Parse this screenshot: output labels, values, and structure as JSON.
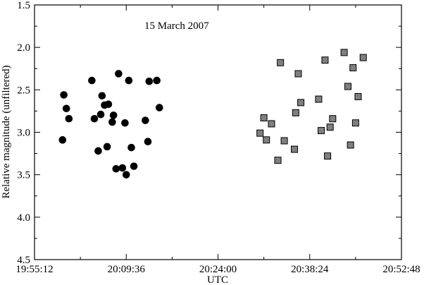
{
  "chart_data": {
    "type": "scatter",
    "annotation": "15 March 2007",
    "xlabel": "UTC",
    "ylabel": "Relative magnitude (unfiltered)",
    "x_tick_labels": [
      "19:55:12",
      "20:09:36",
      "20:24:00",
      "20:38:24",
      "20:52:48"
    ],
    "y_tick_labels": [
      "1.5",
      "2.0",
      "2.5",
      "3.0",
      "3.5",
      "4.0",
      "4.5"
    ],
    "xlim": [
      "19:55:12",
      "20:52:48"
    ],
    "ylim": [
      1.5,
      4.5
    ],
    "y_inverted": true,
    "grid": false,
    "series": [
      {
        "marker": "filled-circle",
        "color": "#000000",
        "points": [
          {
            "x": "19:59:36",
            "y": 3.09
          },
          {
            "x": "19:59:48",
            "y": 2.56
          },
          {
            "x": "20:00:12",
            "y": 2.72
          },
          {
            "x": "20:00:36",
            "y": 2.84
          },
          {
            "x": "20:04:12",
            "y": 2.39
          },
          {
            "x": "20:04:36",
            "y": 2.84
          },
          {
            "x": "20:05:12",
            "y": 3.22
          },
          {
            "x": "20:05:36",
            "y": 2.79
          },
          {
            "x": "20:05:48",
            "y": 2.57
          },
          {
            "x": "20:06:12",
            "y": 2.68
          },
          {
            "x": "20:06:36",
            "y": 3.17
          },
          {
            "x": "20:06:48",
            "y": 2.67
          },
          {
            "x": "20:07:24",
            "y": 2.88
          },
          {
            "x": "20:07:36",
            "y": 2.8
          },
          {
            "x": "20:08:00",
            "y": 3.43
          },
          {
            "x": "20:08:24",
            "y": 2.31
          },
          {
            "x": "20:09:00",
            "y": 3.42
          },
          {
            "x": "20:09:24",
            "y": 2.89
          },
          {
            "x": "20:09:36",
            "y": 3.5
          },
          {
            "x": "20:10:00",
            "y": 2.39
          },
          {
            "x": "20:10:24",
            "y": 3.18
          },
          {
            "x": "20:10:48",
            "y": 3.4
          },
          {
            "x": "20:12:36",
            "y": 2.86
          },
          {
            "x": "20:13:00",
            "y": 3.11
          },
          {
            "x": "20:13:12",
            "y": 2.4
          },
          {
            "x": "20:14:24",
            "y": 2.39
          },
          {
            "x": "20:14:48",
            "y": 2.71
          }
        ]
      },
      {
        "marker": "hatched-square",
        "color": "#000000",
        "points": [
          {
            "x": "20:30:36",
            "y": 3.01
          },
          {
            "x": "20:31:12",
            "y": 2.83
          },
          {
            "x": "20:31:36",
            "y": 3.09
          },
          {
            "x": "20:32:24",
            "y": 2.9
          },
          {
            "x": "20:33:24",
            "y": 3.33
          },
          {
            "x": "20:33:48",
            "y": 2.18
          },
          {
            "x": "20:34:24",
            "y": 3.1
          },
          {
            "x": "20:36:00",
            "y": 3.2
          },
          {
            "x": "20:36:12",
            "y": 2.77
          },
          {
            "x": "20:36:36",
            "y": 2.31
          },
          {
            "x": "20:37:00",
            "y": 2.65
          },
          {
            "x": "20:39:48",
            "y": 2.61
          },
          {
            "x": "20:40:12",
            "y": 2.98
          },
          {
            "x": "20:40:48",
            "y": 2.15
          },
          {
            "x": "20:41:12",
            "y": 3.28
          },
          {
            "x": "20:41:36",
            "y": 2.94
          },
          {
            "x": "20:42:00",
            "y": 2.84
          },
          {
            "x": "20:43:48",
            "y": 2.06
          },
          {
            "x": "20:44:24",
            "y": 2.46
          },
          {
            "x": "20:44:48",
            "y": 3.15
          },
          {
            "x": "20:45:12",
            "y": 2.24
          },
          {
            "x": "20:45:36",
            "y": 2.89
          },
          {
            "x": "20:46:00",
            "y": 2.58
          },
          {
            "x": "20:46:48",
            "y": 2.12
          }
        ]
      }
    ]
  }
}
